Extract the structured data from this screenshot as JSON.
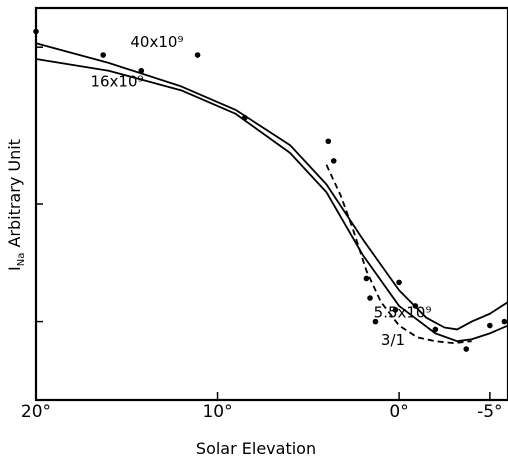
{
  "chart_data": {
    "type": "scatter",
    "title": "",
    "xlabel": "Solar Elevation",
    "ylabel": "I",
    "ylabel_subscript": "Na",
    "ylabel_suffix": " Arbitrary Unit",
    "xlim": [
      20,
      -6
    ],
    "x_ticks": [
      20,
      10,
      0,
      -5
    ],
    "x_tick_labels": [
      "20°",
      "10°",
      "0°",
      "-5°"
    ],
    "y_unit": "arbitrary, 0 (bottom) to 10 (top)",
    "ylim": [
      0,
      10
    ],
    "y_ticks": [
      2,
      5,
      9
    ],
    "y_tick_labels": [],
    "grid": false,
    "points": [
      {
        "x": 20.0,
        "y": 9.4
      },
      {
        "x": 16.3,
        "y": 8.8
      },
      {
        "x": 14.2,
        "y": 8.4
      },
      {
        "x": 11.1,
        "y": 8.8
      },
      {
        "x": 8.5,
        "y": 7.2
      },
      {
        "x": 3.9,
        "y": 6.6
      },
      {
        "x": 3.6,
        "y": 6.1
      },
      {
        "x": 1.8,
        "y": 3.1
      },
      {
        "x": 1.6,
        "y": 2.6
      },
      {
        "x": 1.3,
        "y": 2.0
      },
      {
        "x": 0.2,
        "y": 2.3
      },
      {
        "x": -0.9,
        "y": 2.4
      },
      {
        "x": 0.0,
        "y": 3.0
      },
      {
        "x": -2.0,
        "y": 1.8
      },
      {
        "x": -3.7,
        "y": 1.3
      },
      {
        "x": -5.0,
        "y": 1.9
      },
      {
        "x": -5.8,
        "y": 2.0
      }
    ],
    "series": [
      {
        "name": "40x10⁹",
        "style": "solid",
        "x": [
          20,
          16,
          12,
          9,
          6,
          4,
          2,
          0,
          -1.5,
          -2.5,
          -3.2,
          -4,
          -5,
          -6
        ],
        "y": [
          9.1,
          8.6,
          8.0,
          7.4,
          6.5,
          5.5,
          4.1,
          2.8,
          2.1,
          1.85,
          1.8,
          2.0,
          2.2,
          2.5
        ]
      },
      {
        "name": "16x10⁹",
        "style": "solid",
        "x": [
          20,
          16,
          12,
          9,
          6,
          4,
          2,
          0,
          -2,
          -3.2,
          -4,
          -5,
          -6
        ],
        "y": [
          8.7,
          8.4,
          7.9,
          7.3,
          6.3,
          5.3,
          3.7,
          2.4,
          1.7,
          1.5,
          1.55,
          1.7,
          1.9
        ]
      },
      {
        "name": "5.5x10⁹",
        "style": "dashed",
        "x": [
          4,
          3.2,
          2.5,
          1.8,
          1.0,
          0,
          -1,
          -2,
          -3,
          -4
        ],
        "y": [
          6.0,
          5.2,
          4.3,
          3.3,
          2.5,
          1.9,
          1.6,
          1.5,
          1.45,
          1.5
        ]
      }
    ],
    "labels": [
      {
        "text": "40x10⁹",
        "x": 14.8,
        "y": 9.0
      },
      {
        "text": "16x10⁹",
        "x": 17.0,
        "y": 8.0
      },
      {
        "text": "5.5x10⁹",
        "x": 1.4,
        "y": 2.1
      },
      {
        "text": "3/1",
        "x": 1.0,
        "y": 1.4
      }
    ]
  }
}
